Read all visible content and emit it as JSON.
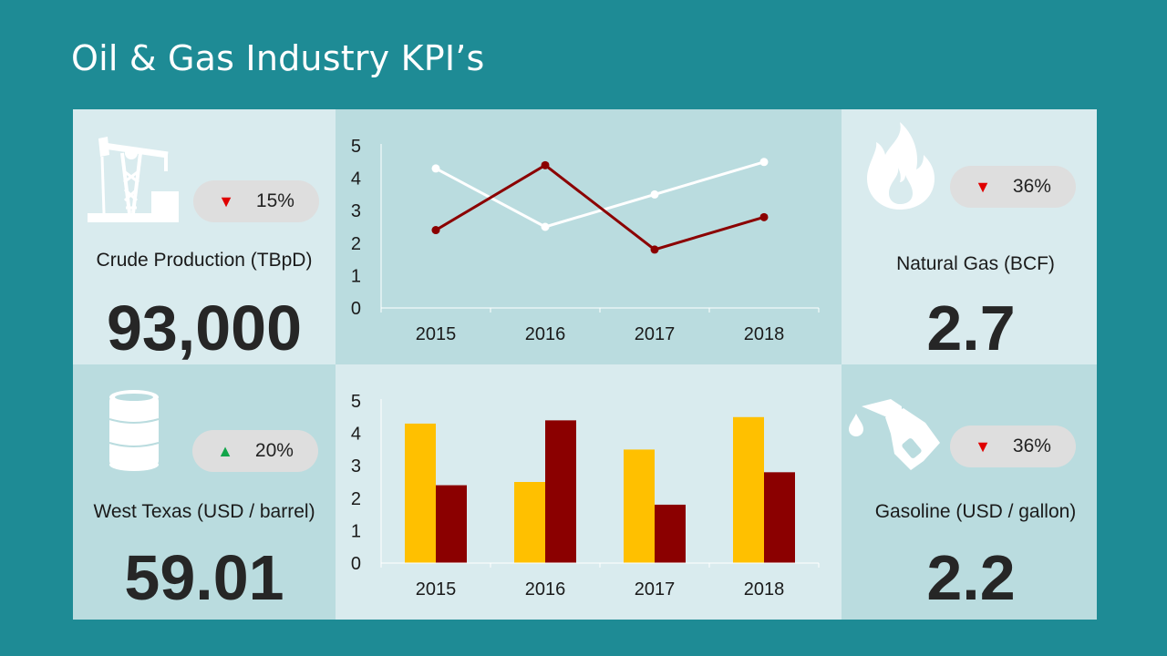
{
  "title": "Oil & Gas Industry KPI’s",
  "colors": {
    "background": "#1e8b95",
    "panel_light": "#d9ebee",
    "panel_mid": "#badcdf",
    "down_arrow": "#e00000",
    "up_arrow": "#12a54a",
    "series_white": "#ffffff",
    "series_dark_red": "#8b0000",
    "bar_yellow": "#ffc000"
  },
  "kpis": {
    "crude": {
      "label": "Crude Production (TBpD)",
      "value": "93,000",
      "change": "15%",
      "direction": "down",
      "icon": "oil-pump-icon"
    },
    "gas": {
      "label": "Natural Gas (BCF)",
      "value": "2.7",
      "change": "36%",
      "direction": "down",
      "icon": "flame-icon"
    },
    "wti": {
      "label": "West Texas (USD / barrel)",
      "value": "59.01",
      "change": "20%",
      "direction": "up",
      "icon": "oil-barrel-icon"
    },
    "gasoline": {
      "label": "Gasoline (USD / gallon)",
      "value": "2.2",
      "change": "36%",
      "direction": "down",
      "icon": "fuel-nozzle-icon"
    }
  },
  "chart_data": [
    {
      "type": "line",
      "categories": [
        "2015",
        "2016",
        "2017",
        "2018"
      ],
      "ylim": [
        0,
        5
      ],
      "yticks": [
        "0",
        "1",
        "2",
        "3",
        "4",
        "5"
      ],
      "grid": false,
      "series": [
        {
          "values": [
            4.3,
            2.5,
            3.5,
            4.5
          ],
          "color": "#ffffff"
        },
        {
          "values": [
            2.4,
            4.4,
            1.8,
            2.8
          ],
          "color": "#8b0000"
        }
      ]
    },
    {
      "type": "bar",
      "categories": [
        "2015",
        "2016",
        "2017",
        "2018"
      ],
      "ylim": [
        0,
        5
      ],
      "yticks": [
        "0",
        "1",
        "2",
        "3",
        "4",
        "5"
      ],
      "grid": false,
      "series": [
        {
          "values": [
            4.3,
            2.5,
            3.5,
            4.5
          ],
          "color": "#ffc000"
        },
        {
          "values": [
            2.4,
            4.4,
            1.8,
            2.8
          ],
          "color": "#8b0000"
        }
      ]
    }
  ]
}
